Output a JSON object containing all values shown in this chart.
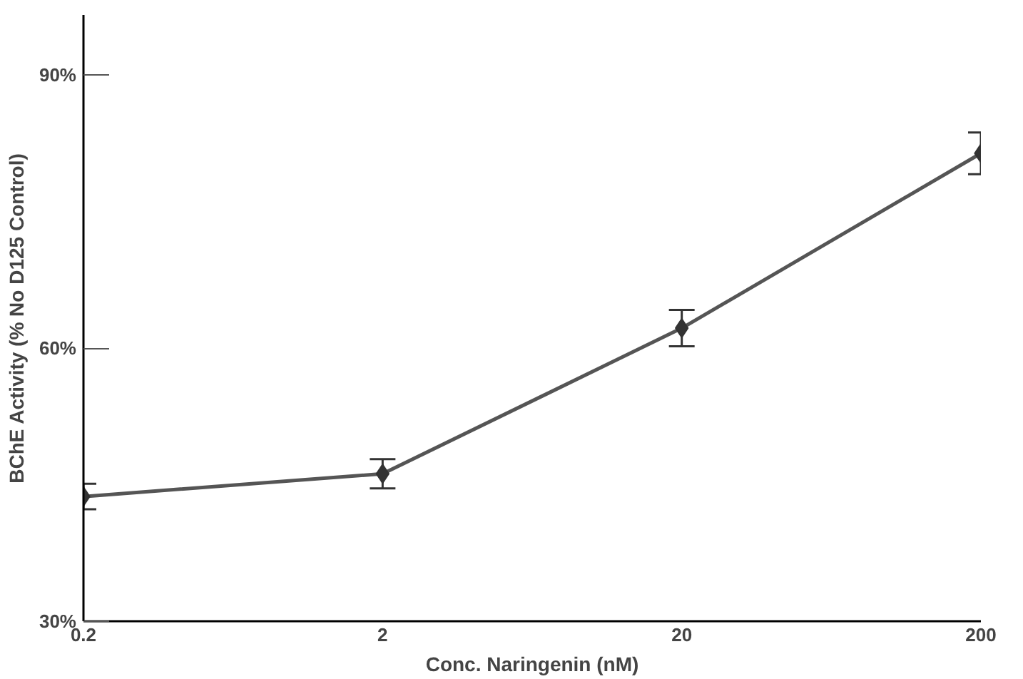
{
  "chart_data": {
    "type": "line",
    "xlabel": "Conc. Naringenin (nM)",
    "ylabel": "BChE Activity (% No D125 Control)",
    "x": [
      0.2,
      2,
      20,
      200
    ],
    "series": [
      {
        "color": "#555555",
        "values": [
          43.7,
          46.2,
          62.2,
          81.4
        ],
        "errors": [
          1.4,
          1.6,
          2.0,
          2.3
        ]
      }
    ],
    "log": "x",
    "xlim": [
      0.2,
      200
    ],
    "xticks": [
      {
        "value": 0.2,
        "label": "0.2"
      },
      2,
      20,
      200
    ],
    "ylim": [
      30,
      96.6
    ],
    "yticks": [
      {
        "value": 30,
        "label": "30%"
      },
      {
        "value": 60,
        "label": "60%"
      },
      {
        "value": 90,
        "label": "90%"
      }
    ],
    "marker": "diamond",
    "line_style": "solid"
  }
}
